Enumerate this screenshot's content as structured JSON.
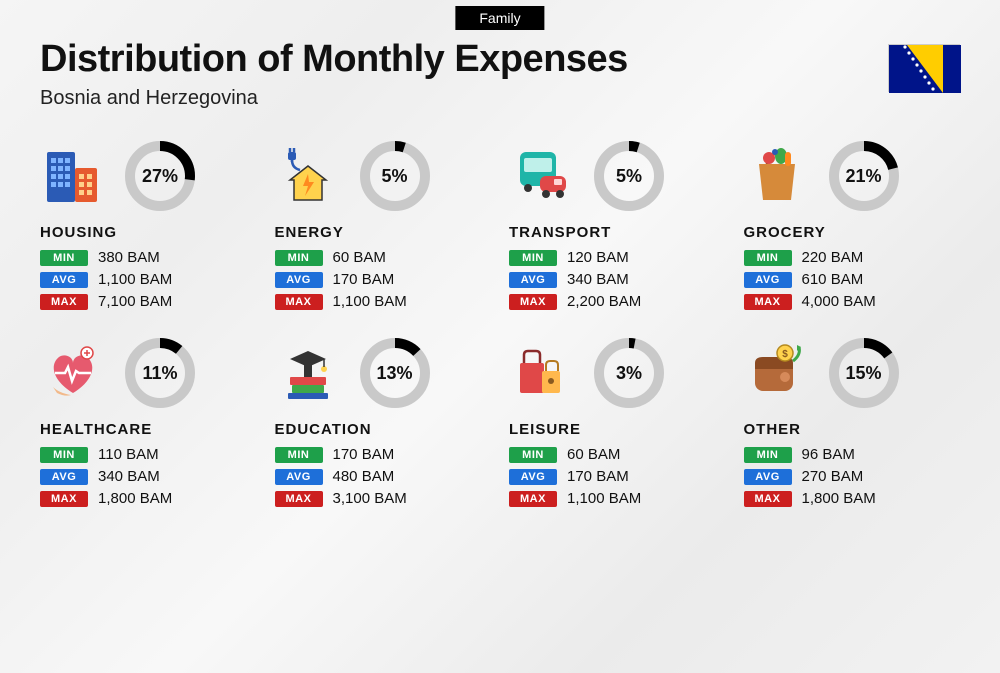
{
  "badge": "Family",
  "title": "Distribution of Monthly Expenses",
  "subtitle": "Bosnia and Herzegovina",
  "currency": "BAM",
  "colors": {
    "min": "#1ea04a",
    "avg": "#1e6fd9",
    "max": "#cc1f1f",
    "donut_track": "#c9c9c9",
    "donut_fill": "#000000",
    "text": "#111111"
  },
  "labels": {
    "min": "MIN",
    "avg": "AVG",
    "max": "MAX"
  },
  "donut": {
    "radius": 30,
    "stroke": 10
  },
  "categories": [
    {
      "name": "HOUSING",
      "pct": 27,
      "min": "380",
      "avg": "1,100",
      "max": "7,100",
      "icon": "housing"
    },
    {
      "name": "ENERGY",
      "pct": 5,
      "min": "60",
      "avg": "170",
      "max": "1,100",
      "icon": "energy"
    },
    {
      "name": "TRANSPORT",
      "pct": 5,
      "min": "120",
      "avg": "340",
      "max": "2,200",
      "icon": "transport"
    },
    {
      "name": "GROCERY",
      "pct": 21,
      "min": "220",
      "avg": "610",
      "max": "4,000",
      "icon": "grocery"
    },
    {
      "name": "HEALTHCARE",
      "pct": 11,
      "min": "110",
      "avg": "340",
      "max": "1,800",
      "icon": "healthcare"
    },
    {
      "name": "EDUCATION",
      "pct": 13,
      "min": "170",
      "avg": "480",
      "max": "3,100",
      "icon": "education"
    },
    {
      "name": "LEISURE",
      "pct": 3,
      "min": "60",
      "avg": "170",
      "max": "1,100",
      "icon": "leisure"
    },
    {
      "name": "OTHER",
      "pct": 15,
      "min": "96",
      "avg": "270",
      "max": "1,800",
      "icon": "other"
    }
  ],
  "icons": {
    "housing": "<svg width='60' height='60' viewBox='0 0 60 60'><rect x='4' y='6' width='28' height='50' rx='2' fill='#2b5bb5'/><rect x='8' y='12' width='5' height='5' fill='#7fb4ff'/><rect x='15' y='12' width='5' height='5' fill='#7fb4ff'/><rect x='22' y='12' width='5' height='5' fill='#7fb4ff'/><rect x='8' y='20' width='5' height='5' fill='#7fb4ff'/><rect x='15' y='20' width='5' height='5' fill='#7fb4ff'/><rect x='22' y='20' width='5' height='5' fill='#7fb4ff'/><rect x='8' y='28' width='5' height='5' fill='#7fb4ff'/><rect x='15' y='28' width='5' height='5' fill='#7fb4ff'/><rect x='22' y='28' width='5' height='5' fill='#7fb4ff'/><rect x='8' y='36' width='5' height='5' fill='#7fb4ff'/><rect x='15' y='36' width='5' height='5' fill='#7fb4ff'/><rect x='22' y='36' width='5' height='5' fill='#7fb4ff'/><rect x='32' y='22' width='22' height='34' rx='2' fill='#e65a2e'/><rect x='36' y='28' width='5' height='5' fill='#ffd08a'/><rect x='44' y='28' width='5' height='5' fill='#ffd08a'/><rect x='36' y='36' width='5' height='5' fill='#ffd08a'/><rect x='44' y='36' width='5' height='5' fill='#ffd08a'/><rect x='36' y='44' width='5' height='5' fill='#ffd08a'/><rect x='44' y='44' width='5' height='5' fill='#ffd08a'/></svg>",
    "energy": "<svg width='60' height='60' viewBox='0 0 60 60'><path d='M30 20 L48 34 L44 34 L44 54 L16 54 L16 34 L12 34 Z' fill='#ffd24d' stroke='#333' stroke-width='1.5'/><path d='M30 28 L25 40 L30 40 L27 50 L36 36 L31 36 Z' fill='#ff8a1f'/><path d='M14 6 L14 16 M12 6 L12 2 M16 6 L16 2' stroke='#2b5bb5' stroke-width='2.5' fill='none'/><rect x='10' y='6' width='8' height='8' rx='2' fill='#2b5bb5'/><path d='M14 14 Q14 22 22 24' stroke='#2b5bb5' stroke-width='2.5' fill='none'/></svg>",
    "transport": "<svg width='60' height='60' viewBox='0 0 60 60'><rect x='8' y='6' width='36' height='34' rx='6' fill='#1fb5a8'/><rect x='12' y='12' width='28' height='14' rx='2' fill='#bff0ea'/><circle cx='16' cy='42' r='4' fill='#333'/><circle cx='36' cy='42' r='4' fill='#333'/><rect x='28' y='30' width='26' height='16' rx='6' fill='#e04848'/><rect x='42' y='33' width='8' height='6' rx='1' fill='#ffd6d6'/><circle cx='34' cy='48' r='4' fill='#333'/><circle cx='48' cy='48' r='4' fill='#333'/></svg>",
    "grocery": "<svg width='60' height='60' viewBox='0 0 60 60'><path d='M12 18 L48 18 L44 54 L16 54 Z' fill='#d68a3a'/><path d='M20 18 Q20 8 30 8 Q40 8 40 18' stroke='#8a5a20' stroke-width='2.5' fill='none'/><circle cx='22' cy='12' r='6' fill='#e04848'/><ellipse cx='34' cy='10' rx='6' ry='8' fill='#3fa84a'/><rect x='38' y='6' width='6' height='14' rx='3' fill='#ff8a1f'/><circle cx='28' cy='6' r='3' fill='#2b5bb5'/></svg>",
    "healthcare": "<svg width='60' height='60' viewBox='0 0 60 60'><path d='M30 50 C10 38 6 22 16 14 C22 10 30 14 30 20 C30 14 38 10 44 14 C54 22 50 38 30 50 Z' fill='#e65a6e'/><path d='M12 30 L22 30 L25 24 L29 38 L33 28 L36 30 L48 30' stroke='#fff' stroke-width='2.5' fill='none'/><path d='M10 44 Q16 50 28 52 Q22 54 14 50 Z' fill='#f2b98a'/><circle cx='44' cy='10' r='6' fill='#fff' stroke='#e04848' stroke-width='1.5'/><path d='M44 7 L44 13 M41 10 L47 10' stroke='#e04848' stroke-width='1.5'/></svg>",
    "education": "<svg width='60' height='60' viewBox='0 0 60 60'><rect x='12' y='34' width='36' height='8' rx='1' fill='#e04848'/><rect x='14' y='42' width='32' height='8' rx='1' fill='#3fa84a'/><rect x='10' y='50' width='40' height='6' rx='1' fill='#2b5bb5'/><path d='M30 8 L48 16 L30 24 L12 16 Z' fill='#333'/><rect x='26' y='20' width='8' height='14' fill='#333'/><circle cx='46' cy='26' r='3' fill='#ffd24d'/><line x1='46' y1='16' x2='46' y2='24' stroke='#333' stroke-width='1.5'/></svg>",
    "leisure": "<svg width='60' height='60' viewBox='0 0 60 60'><rect x='8' y='20' width='24' height='30' rx='2' fill='#e04848'/><path d='M12 20 L12 12 Q12 8 16 8 L24 8 Q28 8 28 12 L28 20' stroke='#8a2a2a' stroke-width='2.5' fill='none'/><rect x='30' y='28' width='18' height='22' rx='2' fill='#ffb84d'/><path d='M34 28 L34 22 Q34 18 38 18 L42 18 Q46 18 46 22 L46 28' stroke='#b57a20' stroke-width='2' fill='none'/><circle cx='39' cy='38' r='3' fill='#8a5a20'/></svg>",
    "other": "<svg width='60' height='60' viewBox='0 0 60 60'><rect x='8' y='18' width='38' height='30' rx='8' fill='#b56a3a'/><path d='M8 26 L46 26 L46 20 Q46 14 38 14 L16 14 Q8 14 8 20 Z' fill='#8a4a22'/><circle cx='38' cy='34' r='5' fill='#d68a5a'/><circle cx='38' cy='10' r='8' fill='#ffd24d' stroke='#b58a20' stroke-width='1.5'/><text x='38' y='14' text-anchor='middle' font-size='10' fill='#8a5a20' font-weight='bold'>$</text><path d='M46 18 Q54 12 52 4' stroke='#3fa84a' stroke-width='3' fill='none'/><path d='M50 2 L54 4 L50 8 Z' fill='#3fa84a'/></svg>"
  },
  "flag_svg": "<svg width='72' height='48' viewBox='0 0 72 48'><rect width='72' height='48' fill='#001489'/><path d='M18 0 L54 0 L54 48 Z' fill='#ffcd00'/><g fill='#fff'><circle cx='16' cy='2' r='1.6'/><circle cx='20' cy='8' r='1.6'/><circle cx='24' cy='14' r='1.6'/><circle cx='28' cy='20' r='1.6'/><circle cx='32' cy='26' r='1.6'/><circle cx='36' cy='32' r='1.6'/><circle cx='40' cy='38' r='1.6'/><circle cx='44' cy='44' r='1.6'/></g></svg>"
}
